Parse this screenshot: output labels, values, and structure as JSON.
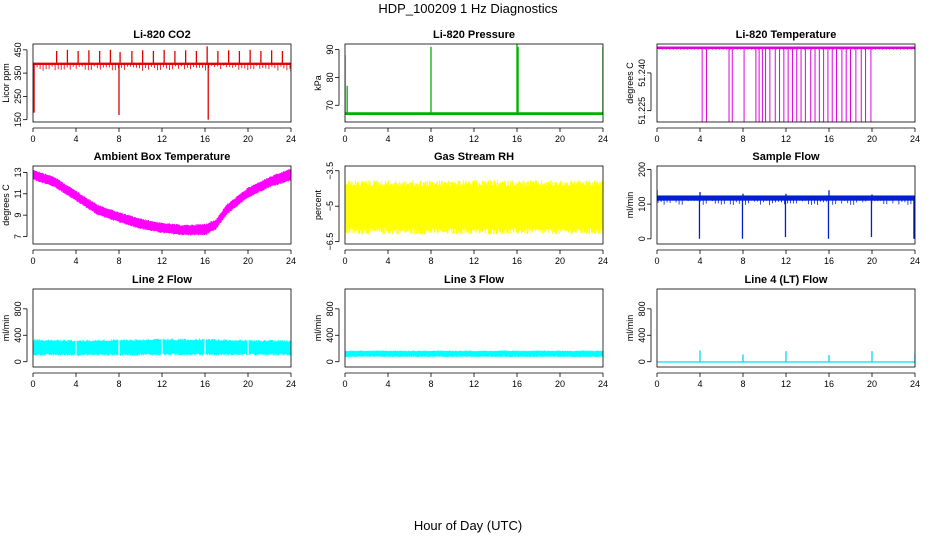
{
  "title": "HDP_100209  1 Hz Diagnostics",
  "xlabel": "Hour of Day (UTC)",
  "chart_data": [
    {
      "type": "line",
      "title": "Li-820 CO2",
      "ylabel": "Licor ppm",
      "color": "#e00000",
      "xlim": [
        0,
        24
      ],
      "ylim": [
        140,
        475
      ],
      "xticks": [
        0,
        4,
        8,
        12,
        16,
        20,
        24
      ],
      "yticks": [
        150,
        250,
        350,
        450
      ],
      "band": [
        0,
        24,
        385,
        395
      ],
      "x": [
        0,
        0.1,
        0.2,
        0.3,
        2.2,
        3.2,
        4.2,
        5.2,
        6.2,
        7.2,
        8.0,
        8.1,
        9.2,
        10.2,
        11.2,
        12.2,
        13.2,
        14.2,
        15.2,
        16.2,
        16.3,
        17.2,
        18.2,
        19.2,
        20.2,
        21.2,
        22.2,
        23.2,
        24
      ],
      "y": [
        385,
        180,
        390,
        385,
        445,
        450,
        445,
        448,
        445,
        450,
        170,
        440,
        445,
        448,
        445,
        450,
        445,
        448,
        445,
        465,
        150,
        445,
        448,
        445,
        450,
        445,
        448,
        445,
        358
      ]
    },
    {
      "type": "line",
      "title": "Li-820 Pressure",
      "ylabel": "kPa",
      "color": "#00b000",
      "xlim": [
        0,
        24
      ],
      "ylim": [
        64,
        92
      ],
      "xticks": [
        0,
        4,
        8,
        12,
        16,
        20,
        24
      ],
      "yticks": [
        70,
        80,
        90
      ],
      "band": [
        0,
        24,
        66.5,
        67.5
      ],
      "x": [
        0,
        0.1,
        0.2,
        8.0,
        8.05,
        16.0,
        16.05,
        16.1,
        24.0
      ],
      "y": [
        88,
        67,
        77,
        91,
        67,
        92,
        67,
        91,
        91
      ]
    },
    {
      "type": "line",
      "title": "Li-820 Temperature",
      "ylabel": "degrees C",
      "color": "#e000e0",
      "xlim": [
        0,
        24
      ],
      "ylim": [
        51.2205,
        51.2515
      ],
      "xticks": [
        0,
        4,
        8,
        12,
        16,
        20,
        24
      ],
      "yticks": [
        51.225,
        51.24
      ],
      "band": [
        0,
        24,
        51.2495,
        51.2505
      ],
      "x": [
        4.2,
        4.6,
        6.7,
        7.0,
        8.1,
        9.2,
        9.5,
        9.8,
        10.1,
        10.5,
        11.0,
        11.4,
        11.8,
        12.2,
        12.6,
        13.0,
        13.4,
        13.8,
        14.3,
        14.7,
        15.1,
        15.5,
        15.9,
        16.3,
        16.7,
        17.2,
        17.6,
        18.0,
        18.5,
        19.0,
        19.4,
        19.9
      ],
      "y": [
        51.2205,
        51.2205,
        51.2205,
        51.2205,
        51.2205,
        51.2205,
        51.2205,
        51.2205,
        51.2205,
        51.2205,
        51.2205,
        51.2205,
        51.2205,
        51.2205,
        51.2205,
        51.2205,
        51.2205,
        51.2205,
        51.2205,
        51.2205,
        51.2205,
        51.2205,
        51.2205,
        51.2205,
        51.2205,
        51.2205,
        51.2205,
        51.2205,
        51.2205,
        51.2205,
        51.2205,
        51.2205
      ]
    },
    {
      "type": "area",
      "title": "Ambient Box Temperature",
      "ylabel": "degrees C",
      "color": "#ff00ff",
      "xlim": [
        0,
        24
      ],
      "ylim": [
        6.3,
        13.6
      ],
      "xticks": [
        0,
        4,
        8,
        12,
        16,
        20,
        24
      ],
      "yticks": [
        7,
        9,
        11,
        13
      ],
      "x": [
        0,
        2,
        4,
        6,
        8,
        10,
        12,
        14,
        16,
        17,
        18,
        20,
        22,
        24
      ],
      "y_low": [
        12.3,
        11.6,
        10.3,
        9.0,
        8.3,
        7.7,
        7.3,
        7.1,
        7.1,
        7.6,
        9.0,
        10.6,
        11.6,
        12.2
      ],
      "y_high": [
        13.3,
        12.6,
        11.3,
        10.0,
        9.3,
        8.7,
        8.3,
        8.1,
        8.2,
        8.6,
        10.0,
        11.6,
        12.6,
        13.4
      ]
    },
    {
      "type": "area",
      "title": "Gas Stream RH",
      "ylabel": "percent",
      "color": "#ffff00",
      "xlim": [
        0,
        24
      ],
      "ylim": [
        -6.6,
        -3.3
      ],
      "xticks": [
        0,
        4,
        8,
        12,
        16,
        20,
        24
      ],
      "yticks": [
        -6.5,
        -5.0,
        -3.5
      ],
      "x": [
        0,
        24
      ],
      "y_low": [
        -6.2,
        -6.2
      ],
      "y_high": [
        -3.9,
        -3.9
      ]
    },
    {
      "type": "line",
      "title": "Sample Flow",
      "ylabel": "ml/min",
      "color": "#0020d0",
      "xlim": [
        0,
        24
      ],
      "ylim": [
        -15,
        210
      ],
      "xticks": [
        0,
        4,
        8,
        12,
        16,
        20,
        24
      ],
      "yticks": [
        0,
        100,
        200
      ],
      "band": [
        0,
        24,
        110,
        125
      ],
      "x": [
        0,
        0.05,
        3.95,
        4.0,
        4.05,
        7.95,
        8.0,
        8.05,
        11.95,
        12.0,
        12.05,
        15.95,
        16.0,
        16.05,
        19.95,
        20.0,
        20.05,
        23.9,
        24.0
      ],
      "y": [
        140,
        118,
        0,
        135,
        118,
        0,
        130,
        118,
        5,
        130,
        118,
        0,
        140,
        118,
        5,
        128,
        118,
        0,
        0
      ]
    },
    {
      "type": "area",
      "title": "Line 2 Flow",
      "ylabel": "ml/min",
      "color": "#00ffff",
      "xlim": [
        0,
        24
      ],
      "ylim": [
        -80,
        1100
      ],
      "xticks": [
        0,
        4,
        8,
        12,
        16,
        20,
        24
      ],
      "yticks": [
        0,
        400,
        800
      ],
      "x": [
        0,
        4,
        8,
        12,
        16,
        20,
        24
      ],
      "y_low": [
        90,
        90,
        90,
        95,
        95,
        95,
        90
      ],
      "y_high": [
        340,
        330,
        340,
        350,
        350,
        330,
        330
      ]
    },
    {
      "type": "area",
      "title": "Line 3 Flow",
      "ylabel": "ml/min",
      "color": "#00ffff",
      "xlim": [
        0,
        24
      ],
      "ylim": [
        -80,
        1100
      ],
      "xticks": [
        0,
        4,
        8,
        12,
        16,
        20,
        24
      ],
      "yticks": [
        0,
        400,
        800
      ],
      "x": [
        0,
        24
      ],
      "y_low": [
        70,
        70
      ],
      "y_high": [
        170,
        170
      ]
    },
    {
      "type": "line",
      "title": "Line 4 (LT) Flow",
      "ylabel": "ml/min",
      "color": "#00d8ff",
      "xlim": [
        0,
        24
      ],
      "ylim": [
        -80,
        1100
      ],
      "xticks": [
        0,
        4,
        8,
        12,
        16,
        20,
        24
      ],
      "yticks": [
        0,
        400,
        800
      ],
      "band": [
        0,
        24,
        -5,
        5
      ],
      "x": [
        0,
        3.95,
        4.0,
        4.05,
        7.95,
        8.0,
        8.05,
        11.95,
        12.0,
        12.05,
        15.95,
        16.0,
        16.05,
        19.95,
        20.0,
        20.05,
        23.95,
        24.0
      ],
      "y": [
        0,
        0,
        170,
        0,
        0,
        110,
        0,
        0,
        160,
        0,
        0,
        100,
        0,
        0,
        160,
        0,
        0,
        120
      ]
    }
  ]
}
